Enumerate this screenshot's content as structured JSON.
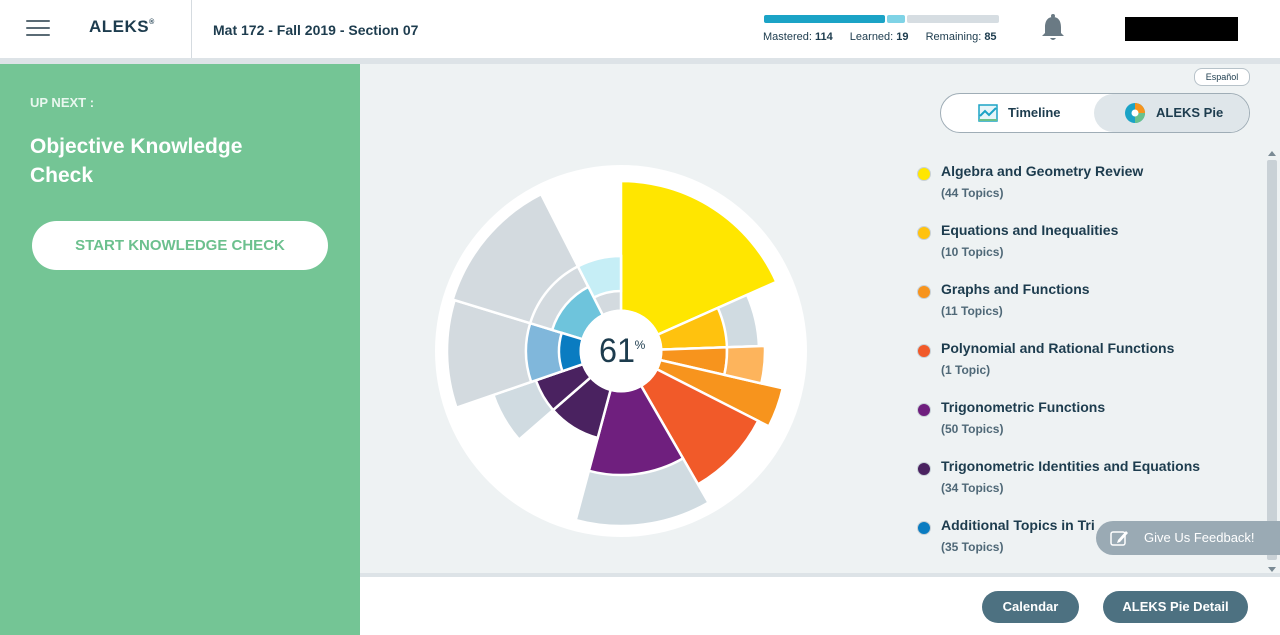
{
  "header": {
    "logo": "ALEKS",
    "logo_mark": "®",
    "course_title": "Mat 172 - Fall 2019 - Section 07",
    "progress": {
      "mastered_label": "Mastered:",
      "mastered": "114",
      "learned_label": "Learned:",
      "learned": "19",
      "remaining_label": "Remaining:",
      "remaining": "85",
      "colors": {
        "mastered": "#1ba3c6",
        "learned": "#7fd3e6",
        "remaining": "#d6dde2"
      }
    }
  },
  "left_panel": {
    "up_next": "UP NEXT :",
    "objective": "Objective Knowledge Check",
    "start_button": "START KNOWLEDGE CHECK",
    "color": "#74c595"
  },
  "main": {
    "language_link": "Español",
    "view_toggle": {
      "timeline": "Timeline",
      "pie": "ALEKS Pie",
      "selected": "ALEKS Pie"
    },
    "pie_center": {
      "value": "61",
      "unit": "%"
    },
    "legend": [
      {
        "name": "Algebra and Geometry Review",
        "count": "(44 Topics)",
        "color": "#ffe600"
      },
      {
        "name": "Equations and Inequalities",
        "count": "(10 Topics)",
        "color": "#ffc20e"
      },
      {
        "name": "Graphs and Functions",
        "count": "(11 Topics)",
        "color": "#f7941d"
      },
      {
        "name": "Polynomial and Rational Functions",
        "count": "(1 Topic)",
        "color": "#f15a29"
      },
      {
        "name": "Trigonometric Functions",
        "count": "(50 Topics)",
        "color": "#6f1f7e"
      },
      {
        "name": "Trigonometric Identities and Equations",
        "count": "(34 Topics)",
        "color": "#4a2260"
      },
      {
        "name": "Additional Topics in Tri",
        "count": "(35 Topics)",
        "color": "#0a7cc1"
      }
    ],
    "feedback_button": "Give Us Feedback!",
    "footer_buttons": {
      "calendar": "Calendar",
      "pie_detail": "ALEKS Pie Detail"
    }
  }
}
